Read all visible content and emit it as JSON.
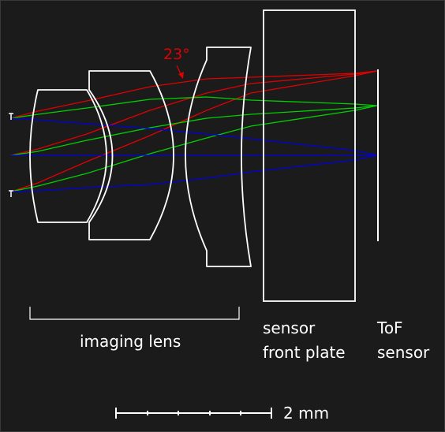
{
  "annotations": {
    "angle": "23°",
    "imaging_lens": "imaging lens",
    "sensor_front_plate_line1": "sensor",
    "sensor_front_plate_line2": "front plate",
    "tof_sensor_line1": "ToF",
    "tof_sensor_line2": "sensor",
    "scale_bar": "2 mm"
  },
  "colors": {
    "background": "#1b1b1b",
    "outline": "#ffffff",
    "ray_red": "#e00000",
    "ray_green": "#00d000",
    "ray_blue": "#0000e0"
  },
  "ray_fields": [
    "red",
    "green",
    "blue"
  ]
}
